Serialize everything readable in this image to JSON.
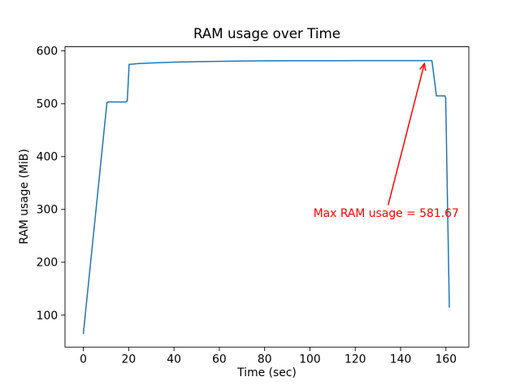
{
  "figure": {
    "background": "#ffffff",
    "text_color": "#000000"
  },
  "chart_data": {
    "type": "line",
    "title": "RAM usage over Time",
    "xlabel": "Time (sec)",
    "ylabel": "RAM usage (MiB)",
    "xlim": [
      -8.1,
      170.1
    ],
    "ylim": [
      39.5,
      608.0
    ],
    "xticks": [
      0,
      20,
      40,
      60,
      80,
      100,
      120,
      140,
      160
    ],
    "yticks": [
      100,
      200,
      300,
      400,
      500,
      600
    ],
    "grid": false,
    "legend": null,
    "line_color": "#1f77b4",
    "series": [
      {
        "name": "RAM usage",
        "points": [
          [
            0,
            65
          ],
          [
            10.4,
            502
          ],
          [
            11,
            503.5
          ],
          [
            18.8,
            503.5
          ],
          [
            19.4,
            506
          ],
          [
            20.2,
            574.5
          ],
          [
            25,
            576.2
          ],
          [
            30,
            577.2
          ],
          [
            40,
            578.7
          ],
          [
            50,
            579.7
          ],
          [
            60,
            580.4
          ],
          [
            70,
            580.9
          ],
          [
            80,
            581.2
          ],
          [
            90,
            581.4
          ],
          [
            100,
            581.5
          ],
          [
            110,
            581.55
          ],
          [
            120,
            581.6
          ],
          [
            130,
            581.63
          ],
          [
            140,
            581.65
          ],
          [
            150,
            581.67
          ],
          [
            153.8,
            581.6
          ],
          [
            154.2,
            570
          ],
          [
            155.8,
            515
          ],
          [
            159.6,
            515
          ],
          [
            159.9,
            510
          ],
          [
            161.5,
            115
          ]
        ]
      }
    ],
    "max_value": 581.67,
    "annotation": {
      "text": "Max RAM usage = 581.67",
      "color": "#ff0000",
      "arrow_tip": [
        150.5,
        576
      ],
      "arrow_tail": [
        134.5,
        308
      ],
      "text_pos": [
        101.5,
        291
      ]
    }
  }
}
